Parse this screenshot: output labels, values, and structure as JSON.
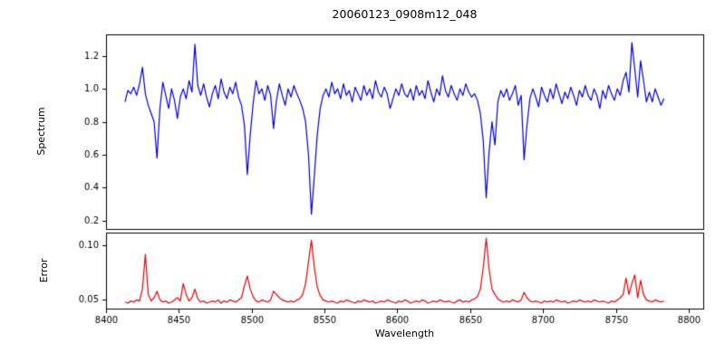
{
  "chart_data": {
    "type": "line",
    "title": "20060123_0908m12_048",
    "xlabel": "Wavelength",
    "grid": false,
    "legend": "none",
    "x_start": 8413,
    "x_step": 2,
    "n_points": 186,
    "xlim": [
      8400,
      8810
    ],
    "x_ticks": [
      8400,
      8450,
      8500,
      8550,
      8600,
      8650,
      8700,
      8750,
      8800
    ],
    "panels": [
      {
        "name": "spectrum",
        "ylabel": "Spectrum",
        "color": "#0000dd",
        "ylim": [
          0.15,
          1.33
        ],
        "y_ticks": [
          0.2,
          0.4,
          0.6,
          0.8,
          1.0,
          1.2
        ],
        "y_tick_labels": [
          "0.2",
          "0.4",
          "0.6",
          "0.8",
          "1.0",
          "1.2"
        ],
        "values": [
          0.92,
          0.99,
          0.97,
          1.01,
          0.96,
          1.03,
          1.13,
          0.97,
          0.9,
          0.85,
          0.8,
          0.58,
          0.88,
          1.04,
          0.96,
          0.88,
          1.0,
          0.93,
          0.82,
          0.95,
          1.0,
          0.94,
          1.05,
          0.98,
          1.27,
          1.02,
          0.96,
          1.03,
          0.95,
          0.89,
          0.97,
          1.02,
          0.94,
          1.06,
          0.98,
          0.94,
          1.01,
          0.97,
          1.04,
          0.95,
          0.9,
          0.78,
          0.48,
          0.72,
          0.91,
          1.05,
          0.97,
          1.0,
          0.93,
          1.02,
          0.96,
          0.76,
          0.93,
          1.03,
          0.96,
          0.9,
          1.0,
          0.95,
          1.02,
          0.97,
          0.93,
          0.88,
          0.8,
          0.6,
          0.24,
          0.47,
          0.72,
          0.88,
          0.96,
          1.0,
          0.95,
          1.04,
          0.97,
          1.0,
          0.94,
          1.03,
          0.96,
          0.99,
          0.92,
          1.01,
          0.97,
          0.93,
          1.02,
          0.96,
          1.0,
          0.94,
          1.05,
          0.98,
          0.95,
          1.01,
          0.97,
          0.88,
          0.94,
          1.0,
          0.96,
          1.03,
          0.97,
          0.95,
          1.0,
          0.93,
          1.02,
          0.96,
          0.99,
          0.94,
          1.05,
          0.98,
          0.92,
          1.0,
          0.96,
          1.08,
          0.99,
          0.95,
          1.02,
          0.97,
          0.93,
          1.0,
          0.96,
          1.03,
          0.98,
          0.95,
          0.97,
          0.93,
          0.85,
          0.68,
          0.34,
          0.62,
          0.8,
          0.66,
          0.92,
          0.99,
          0.95,
          1.0,
          0.93,
          0.97,
          1.02,
          0.9,
          0.96,
          0.57,
          0.78,
          0.94,
          1.0,
          0.95,
          0.89,
          1.01,
          0.96,
          0.92,
          1.0,
          0.94,
          1.03,
          0.97,
          0.91,
          0.98,
          0.94,
          1.01,
          0.96,
          0.9,
          0.99,
          0.95,
          1.02,
          0.96,
          0.93,
          1.0,
          0.96,
          0.88,
          0.99,
          0.94,
          1.02,
          0.97,
          0.93,
          1.0,
          0.96,
          1.05,
          1.1,
          0.98,
          1.28,
          1.12,
          0.95,
          1.17,
          1.05,
          0.92,
          0.98,
          0.92,
          1.0,
          0.95,
          0.9,
          0.94
        ]
      },
      {
        "name": "error",
        "ylabel": "Error",
        "color": "#ee0000",
        "ylim": [
          0.042,
          0.112
        ],
        "y_ticks": [
          0.05,
          0.1
        ],
        "y_tick_labels": [
          "0.05",
          "0.10"
        ],
        "values": [
          0.048,
          0.047,
          0.049,
          0.048,
          0.05,
          0.049,
          0.06,
          0.092,
          0.055,
          0.049,
          0.052,
          0.058,
          0.05,
          0.048,
          0.049,
          0.047,
          0.048,
          0.05,
          0.052,
          0.049,
          0.065,
          0.055,
          0.049,
          0.052,
          0.06,
          0.051,
          0.048,
          0.049,
          0.047,
          0.048,
          0.049,
          0.048,
          0.05,
          0.047,
          0.049,
          0.048,
          0.05,
          0.049,
          0.048,
          0.05,
          0.052,
          0.063,
          0.072,
          0.06,
          0.053,
          0.049,
          0.048,
          0.05,
          0.049,
          0.048,
          0.05,
          0.058,
          0.055,
          0.052,
          0.05,
          0.049,
          0.048,
          0.049,
          0.048,
          0.05,
          0.051,
          0.055,
          0.065,
          0.085,
          0.105,
          0.08,
          0.062,
          0.054,
          0.05,
          0.049,
          0.048,
          0.049,
          0.048,
          0.047,
          0.049,
          0.048,
          0.05,
          0.049,
          0.048,
          0.047,
          0.049,
          0.048,
          0.05,
          0.049,
          0.048,
          0.049,
          0.047,
          0.048,
          0.049,
          0.048,
          0.05,
          0.049,
          0.048,
          0.047,
          0.049,
          0.048,
          0.05,
          0.049,
          0.047,
          0.048,
          0.049,
          0.048,
          0.05,
          0.049,
          0.047,
          0.048,
          0.049,
          0.048,
          0.05,
          0.049,
          0.048,
          0.049,
          0.048,
          0.047,
          0.049,
          0.05,
          0.048,
          0.049,
          0.048,
          0.05,
          0.051,
          0.053,
          0.06,
          0.08,
          0.107,
          0.078,
          0.06,
          0.055,
          0.051,
          0.049,
          0.048,
          0.049,
          0.048,
          0.05,
          0.049,
          0.048,
          0.05,
          0.057,
          0.052,
          0.049,
          0.048,
          0.049,
          0.048,
          0.047,
          0.049,
          0.048,
          0.049,
          0.048,
          0.05,
          0.049,
          0.048,
          0.049,
          0.047,
          0.048,
          0.049,
          0.048,
          0.05,
          0.049,
          0.048,
          0.049,
          0.048,
          0.05,
          0.049,
          0.048,
          0.049,
          0.048,
          0.047,
          0.049,
          0.048,
          0.05,
          0.052,
          0.055,
          0.07,
          0.055,
          0.065,
          0.073,
          0.052,
          0.068,
          0.055,
          0.05,
          0.049,
          0.048,
          0.05,
          0.049,
          0.048,
          0.049
        ]
      }
    ]
  }
}
